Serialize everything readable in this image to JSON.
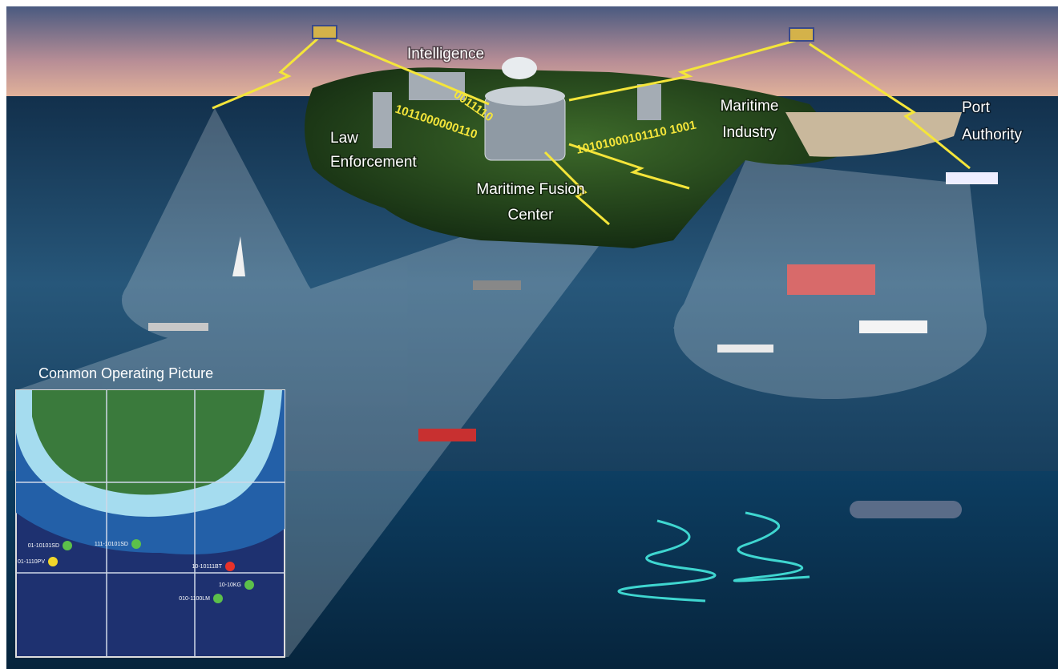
{
  "labels": [
    {
      "lines": [
        "Intelligence"
      ]
    },
    {
      "lines": [
        "Law",
        "Enforcement"
      ]
    },
    {
      "lines": [
        "Maritime Fusion",
        "Center"
      ]
    },
    {
      "lines": [
        "Maritime",
        "Industry"
      ]
    },
    {
      "lines": [
        "Port",
        "Authority"
      ]
    }
  ],
  "binary": [
    "1011000000110",
    "0011110",
    "10101000101110 1001"
  ],
  "cop": {
    "title": "Common Operating Picture",
    "contacts": [
      {
        "id": "01-10101SD",
        "color": "#5cc04a"
      },
      {
        "id": "111-10101SD",
        "color": "#5cc04a"
      },
      {
        "id": "01-1110PV",
        "color": "#f2d72a"
      },
      {
        "id": "10-10111BT",
        "color": "#e8322a"
      },
      {
        "id": "10-10KG",
        "color": "#5cc04a"
      },
      {
        "id": "010-1100LM",
        "color": "#5cc04a"
      }
    ]
  }
}
